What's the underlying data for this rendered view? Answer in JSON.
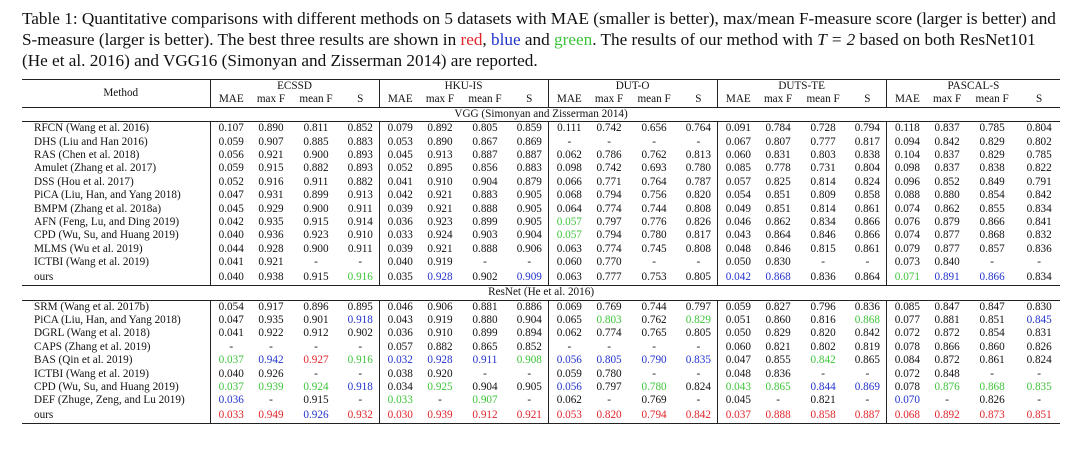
{
  "caption": {
    "p1": "Table 1: Quantitative comparisons with different methods on 5 datasets with MAE (smaller is better), max/mean F-measure score (larger is better) and S-measure (larger is better). The best three results are shown in ",
    "red": "red",
    "p2": ", ",
    "blue": "blue",
    "p3": " and ",
    "green": "green",
    "p4": ". The results of our method with ",
    "math": "T = 2",
    "p5": " based on both ResNet101 (He et al. 2016) and VGG16 (Simonyan and Zisserman 2014) are reported."
  },
  "colors": {
    "red": "#e0242a",
    "blue": "#2233cc",
    "green": "#3ec43a"
  },
  "table": {
    "method_header": "Method",
    "datasets": [
      "ECSSD",
      "HKU-IS",
      "DUT-O",
      "DUTS-TE",
      "PASCAL-S"
    ],
    "metrics": [
      "MAE",
      "max F",
      "mean F",
      "S"
    ],
    "sections": [
      {
        "title": "VGG (Simonyan and Zisserman 2014)",
        "rows": [
          {
            "method": "RFCN (Wang et al. 2016)",
            "values": [
              "0.107",
              "0.890",
              "0.811",
              "0.852",
              "0.079",
              "0.892",
              "0.805",
              "0.859",
              "0.111",
              "0.742",
              "0.656",
              "0.764",
              "0.091",
              "0.784",
              "0.728",
              "0.794",
              "0.118",
              "0.837",
              "0.785",
              "0.804"
            ]
          },
          {
            "method": "DHS (Liu and Han 2016)",
            "values": [
              "0.059",
              "0.907",
              "0.885",
              "0.883",
              "0.053",
              "0.890",
              "0.867",
              "0.869",
              "-",
              "-",
              "-",
              "-",
              "0.067",
              "0.807",
              "0.777",
              "0.817",
              "0.094",
              "0.842",
              "0.829",
              "0.802"
            ]
          },
          {
            "method": "RAS (Chen et al. 2018)",
            "values": [
              "0.056",
              "0.921",
              "0.900",
              "0.893",
              "0.045",
              "0.913",
              "0.887",
              "0.887",
              "0.062",
              "0.786",
              "0.762",
              "0.813",
              "0.060",
              "0.831",
              "0.803",
              "0.838",
              "0.104",
              "0.837",
              "0.829",
              "0.785"
            ]
          },
          {
            "method": "Amulet (Zhang et al. 2017)",
            "values": [
              "0.059",
              "0.915",
              "0.882",
              "0.893",
              "0.052",
              "0.895",
              "0.856",
              "0.883",
              "0.098",
              "0.742",
              "0.693",
              "0.780",
              "0.085",
              "0.778",
              "0.731",
              "0.804",
              "0.098",
              "0.837",
              "0.838",
              "0.822"
            ]
          },
          {
            "method": "DSS (Hou et al. 2017)",
            "values": [
              "0.052",
              "0.916",
              "0.911",
              "0.882",
              "0.041",
              "0.910",
              "0.904",
              "0.879",
              "0.066",
              "0.771",
              "0.764",
              "0.787",
              "0.057",
              "0.825",
              "0.814",
              "0.824",
              "0.096",
              "0.852",
              "0.849",
              "0.791"
            ]
          },
          {
            "method": "PiCA (Liu, Han, and Yang 2018)",
            "values": [
              "0.047",
              "0.931",
              "0.899",
              "0.913",
              "0.042",
              "0.921",
              "0.883",
              "0.905",
              "0.068",
              "0.794",
              "0.756",
              "0.820",
              "0.054",
              "0.851",
              "0.809",
              "0.858",
              "0.088",
              "0.880",
              "0.854",
              "0.842"
            ]
          },
          {
            "method": "BMPM (Zhang et al. 2018a)",
            "values": [
              "0.045",
              "0.929",
              "0.900",
              "0.911",
              "0.039",
              "0.921",
              "0.888",
              "0.905",
              "0.064",
              "0.774",
              "0.744",
              "0.808",
              "0.049",
              "0.851",
              "0.814",
              "0.861",
              "0.074",
              "0.862",
              "0.855",
              "0.834"
            ]
          },
          {
            "method": "AFN (Feng, Lu, and Ding 2019)",
            "values": [
              "0.042",
              "0.935",
              "0.915",
              "0.914",
              "0.036",
              "0.923",
              "0.899",
              "0.905",
              "0.057",
              "0.797",
              "0.776",
              "0.826",
              "0.046",
              "0.862",
              "0.834",
              "0.866",
              "0.076",
              "0.879",
              "0.866",
              "0.841"
            ],
            "colors": {
              "8": "g"
            }
          },
          {
            "method": "CPD (Wu, Su, and Huang 2019)",
            "values": [
              "0.040",
              "0.936",
              "0.923",
              "0.910",
              "0.033",
              "0.924",
              "0.903",
              "0.904",
              "0.057",
              "0.794",
              "0.780",
              "0.817",
              "0.043",
              "0.864",
              "0.846",
              "0.866",
              "0.074",
              "0.877",
              "0.868",
              "0.832"
            ],
            "colors": {
              "8": "g"
            }
          },
          {
            "method": "MLMS (Wu et al. 2019)",
            "values": [
              "0.044",
              "0.928",
              "0.900",
              "0.911",
              "0.039",
              "0.921",
              "0.888",
              "0.906",
              "0.063",
              "0.774",
              "0.745",
              "0.808",
              "0.048",
              "0.846",
              "0.815",
              "0.861",
              "0.079",
              "0.877",
              "0.857",
              "0.836"
            ]
          },
          {
            "method": "ICTBI (Wang et al. 2019)",
            "values": [
              "0.041",
              "0.921",
              "-",
              "-",
              "0.040",
              "0.919",
              "-",
              "-",
              "0.060",
              "0.770",
              "-",
              "-",
              "0.050",
              "0.830",
              "-",
              "-",
              "0.073",
              "0.840",
              "-",
              "-"
            ]
          },
          {
            "method": "ours",
            "values": [
              "0.040",
              "0.938",
              "0.915",
              "0.916",
              "0.035",
              "0.928",
              "0.902",
              "0.909",
              "0.063",
              "0.777",
              "0.753",
              "0.805",
              "0.042",
              "0.868",
              "0.836",
              "0.864",
              "0.071",
              "0.891",
              "0.866",
              "0.834"
            ],
            "colors": {
              "3": "g",
              "5": "b",
              "7": "b",
              "12": "b",
              "13": "b",
              "16": "g",
              "17": "b",
              "18": "b"
            }
          }
        ]
      },
      {
        "title": "ResNet (He et al. 2016)",
        "rows": [
          {
            "method": "SRM (Wang et al. 2017b)",
            "values": [
              "0.054",
              "0.917",
              "0.896",
              "0.895",
              "0.046",
              "0.906",
              "0.881",
              "0.886",
              "0.069",
              "0.769",
              "0.744",
              "0.797",
              "0.059",
              "0.827",
              "0.796",
              "0.836",
              "0.085",
              "0.847",
              "0.847",
              "0.830"
            ]
          },
          {
            "method": "PiCA (Liu, Han, and Yang 2018)",
            "values": [
              "0.047",
              "0.935",
              "0.901",
              "0.918",
              "0.043",
              "0.919",
              "0.880",
              "0.904",
              "0.065",
              "0.803",
              "0.762",
              "0.829",
              "0.051",
              "0.860",
              "0.816",
              "0.868",
              "0.077",
              "0.881",
              "0.851",
              "0.845"
            ],
            "colors": {
              "3": "b",
              "9": "g",
              "11": "g",
              "15": "g",
              "19": "b"
            }
          },
          {
            "method": "DGRL (Wang et al. 2018)",
            "values": [
              "0.041",
              "0.922",
              "0.912",
              "0.902",
              "0.036",
              "0.910",
              "0.899",
              "0.894",
              "0.062",
              "0.774",
              "0.765",
              "0.805",
              "0.050",
              "0.829",
              "0.820",
              "0.842",
              "0.072",
              "0.872",
              "0.854",
              "0.831"
            ]
          },
          {
            "method": "CAPS (Zhang et al. 2019)",
            "values": [
              "-",
              "-",
              "-",
              "-",
              "0.057",
              "0.882",
              "0.865",
              "0.852",
              "-",
              "-",
              "-",
              "-",
              "0.060",
              "0.821",
              "0.802",
              "0.819",
              "0.078",
              "0.866",
              "0.860",
              "0.826"
            ]
          },
          {
            "method": "BAS (Qin et al. 2019)",
            "values": [
              "0.037",
              "0.942",
              "0.927",
              "0.916",
              "0.032",
              "0.928",
              "0.911",
              "0.908",
              "0.056",
              "0.805",
              "0.790",
              "0.835",
              "0.047",
              "0.855",
              "0.842",
              "0.865",
              "0.084",
              "0.872",
              "0.861",
              "0.824"
            ],
            "colors": {
              "0": "g",
              "1": "b",
              "2": "r",
              "3": "g",
              "4": "b",
              "5": "b",
              "6": "b",
              "7": "g",
              "8": "b",
              "9": "b",
              "10": "b",
              "11": "b",
              "14": "g"
            }
          },
          {
            "method": "ICTBI (Wang et al. 2019)",
            "values": [
              "0.040",
              "0.926",
              "-",
              "-",
              "0.038",
              "0.920",
              "-",
              "-",
              "0.059",
              "0.780",
              "-",
              "-",
              "0.048",
              "0.836",
              "-",
              "-",
              "0.072",
              "0.848",
              "-",
              "-"
            ]
          },
          {
            "method": "CPD (Wu, Su, and Huang 2019)",
            "values": [
              "0.037",
              "0.939",
              "0.924",
              "0.918",
              "0.034",
              "0.925",
              "0.904",
              "0.905",
              "0.056",
              "0.797",
              "0.780",
              "0.824",
              "0.043",
              "0.865",
              "0.844",
              "0.869",
              "0.078",
              "0.876",
              "0.868",
              "0.835"
            ],
            "colors": {
              "0": "g",
              "1": "g",
              "2": "g",
              "3": "b",
              "5": "g",
              "8": "b",
              "10": "g",
              "12": "g",
              "13": "g",
              "14": "b",
              "15": "b",
              "17": "g",
              "18": "g",
              "19": "g"
            }
          },
          {
            "method": "DEF (Zhuge, Zeng, and Lu 2019)",
            "values": [
              "0.036",
              "-",
              "0.915",
              "-",
              "0.033",
              "-",
              "0.907",
              "-",
              "0.062",
              "-",
              "0.769",
              "-",
              "0.045",
              "-",
              "0.821",
              "-",
              "0.070",
              "-",
              "0.826",
              "-"
            ],
            "colors": {
              "0": "b",
              "4": "g",
              "6": "g",
              "16": "b"
            }
          },
          {
            "method": "ours",
            "values": [
              "0.033",
              "0.949",
              "0.926",
              "0.932",
              "0.030",
              "0.939",
              "0.912",
              "0.921",
              "0.053",
              "0.820",
              "0.794",
              "0.842",
              "0.037",
              "0.888",
              "0.858",
              "0.887",
              "0.068",
              "0.892",
              "0.873",
              "0.851"
            ],
            "colors": {
              "0": "r",
              "1": "r",
              "2": "b",
              "3": "r",
              "4": "r",
              "5": "r",
              "6": "r",
              "7": "r",
              "8": "r",
              "9": "r",
              "10": "r",
              "11": "r",
              "12": "r",
              "13": "r",
              "14": "r",
              "15": "r",
              "16": "r",
              "17": "r",
              "18": "r",
              "19": "r"
            }
          }
        ]
      }
    ]
  }
}
